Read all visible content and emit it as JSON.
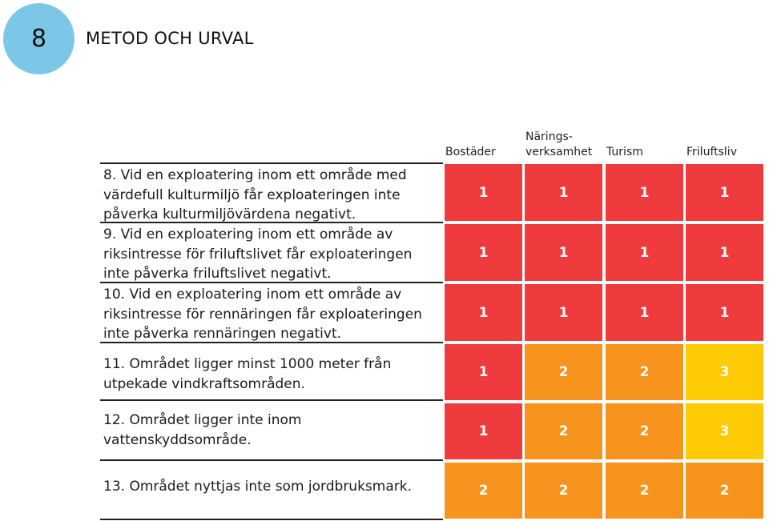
{
  "header": {
    "page_number": "8",
    "title": "METOD OCH URVAL"
  },
  "table": {
    "columns": [
      "Bostäder",
      "Närings-\nverksamhet",
      "Turism",
      "Friluftsliv"
    ],
    "rows": [
      {
        "label": "8. Vid en exploatering inom ett område med\nvärdefull kulturmiljö får exploateringen inte\npåverka kulturmiljövärdena negativt.",
        "values": [
          "1",
          "1",
          "1",
          "1"
        ]
      },
      {
        "label": "9. Vid en exploatering inom ett område av\nriksintresse för friluftslivet får exploateringen\ninte påverka friluftslivet negativt.",
        "values": [
          "1",
          "1",
          "1",
          "1"
        ]
      },
      {
        "label": "10. Vid en exploatering inom ett område av\nriksintresse för rennäringen får exploateringen\ninte påverka rennäringen negativt.",
        "values": [
          "1",
          "1",
          "1",
          "1"
        ]
      },
      {
        "label": "11. Området ligger minst 1000 meter från\nutpekade vindkraftsområden.",
        "values": [
          "1",
          "2",
          "2",
          "3"
        ]
      },
      {
        "label": "12. Området ligger inte inom\nvattenskyddsområde.",
        "values": [
          "1",
          "2",
          "2",
          "3"
        ]
      },
      {
        "label": "13. Området nyttjas inte som jordbruksmark.",
        "values": [
          "2",
          "2",
          "2",
          "2"
        ]
      }
    ],
    "value_colors": {
      "1": "#ef3a3e",
      "2": "#f7941d",
      "3": "#ffcb05"
    }
  }
}
